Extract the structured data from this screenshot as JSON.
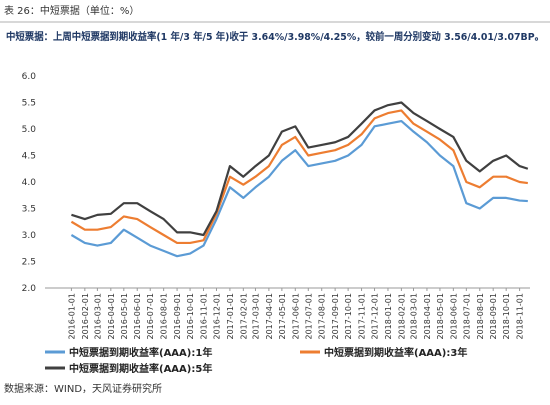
{
  "chart_data": {
    "type": "line",
    "title": "表 26：中短票据（单位：%）",
    "subtitle": "中短票据：上周中短票据到期收益率(1 年/3 年/5 年)收于 3.64%/3.98%/4.25%，较前一周分别变动 3.56/4.01/3.07BP。",
    "source": "数据来源：WIND，天风证券研究所",
    "x": [
      "2016-01-01",
      "2016-02-01",
      "2016-03-01",
      "2016-04-01",
      "2016-05-01",
      "2016-06-01",
      "2016-07-01",
      "2016-08-01",
      "2016-09-01",
      "2016-10-01",
      "2016-11-01",
      "2016-12-01",
      "2017-01-01",
      "2017-02-01",
      "2017-03-01",
      "2017-04-01",
      "2017-05-01",
      "2017-06-01",
      "2017-07-01",
      "2017-08-01",
      "2017-09-01",
      "2017-10-01",
      "2017-11-01",
      "2017-12-01",
      "2018-01-01",
      "2018-02-01",
      "2018-03-01",
      "2018-04-01",
      "2018-05-01",
      "2018-06-01",
      "2018-07-01",
      "2018-08-01",
      "2018-09-01",
      "2018-10-01",
      "2018-11-01",
      "2018-11-20"
    ],
    "series": [
      {
        "name": "中短票据到期收益率(AAA):1年",
        "color": "#5b9bd5",
        "values": [
          3.0,
          2.85,
          2.8,
          2.85,
          3.1,
          2.95,
          2.8,
          2.7,
          2.6,
          2.65,
          2.8,
          3.3,
          3.9,
          3.7,
          3.9,
          4.1,
          4.4,
          4.6,
          4.3,
          4.35,
          4.4,
          4.5,
          4.7,
          5.05,
          5.1,
          5.15,
          4.95,
          4.75,
          4.5,
          4.3,
          3.6,
          3.5,
          3.7,
          3.7,
          3.65,
          3.64
        ]
      },
      {
        "name": "中短票据到期收益率(AAA):3年",
        "color": "#ed7d31",
        "values": [
          3.25,
          3.1,
          3.1,
          3.15,
          3.35,
          3.3,
          3.15,
          3.0,
          2.85,
          2.85,
          2.9,
          3.4,
          4.1,
          3.95,
          4.1,
          4.3,
          4.7,
          4.85,
          4.5,
          4.55,
          4.6,
          4.7,
          4.9,
          5.2,
          5.3,
          5.35,
          5.1,
          4.95,
          4.8,
          4.6,
          4.0,
          3.9,
          4.1,
          4.1,
          4.0,
          3.98
        ]
      },
      {
        "name": "中短票据到期收益率(AAA):5年",
        "color": "#404040",
        "values": [
          3.38,
          3.3,
          3.38,
          3.4,
          3.6,
          3.6,
          3.45,
          3.3,
          3.05,
          3.05,
          3.0,
          3.45,
          4.3,
          4.1,
          4.3,
          4.5,
          4.95,
          5.05,
          4.65,
          4.7,
          4.75,
          4.85,
          5.1,
          5.35,
          5.45,
          5.5,
          5.3,
          5.15,
          5.0,
          4.85,
          4.4,
          4.2,
          4.4,
          4.5,
          4.3,
          4.25
        ]
      }
    ],
    "xlim": [
      "2015-11-01",
      "2018-11-25"
    ],
    "xticks": [
      "2016-01-01",
      "2016-02-01",
      "2016-03-01",
      "2016-04-01",
      "2016-05-01",
      "2016-06-01",
      "2016-07-01",
      "2016-08-01",
      "2016-09-01",
      "2016-10-01",
      "2016-11-01",
      "2016-12-01",
      "2017-01-01",
      "2017-02-01",
      "2017-03-01",
      "2017-04-01",
      "2017-05-01",
      "2017-06-01",
      "2017-07-01",
      "2017-08-01",
      "2017-09-01",
      "2017-10-01",
      "2017-11-01",
      "2017-12-01",
      "2018-01-01",
      "2018-02-01",
      "2018-03-01",
      "2018-04-01",
      "2018-05-01",
      "2018-06-01",
      "2018-07-01",
      "2018-08-01",
      "2018-09-01",
      "2018-10-01",
      "2018-11-01"
    ],
    "ylim": [
      2,
      6
    ],
    "yticks": [
      {
        "value": 2,
        "label": "2.0"
      },
      2.5,
      {
        "value": 3,
        "label": "3.0"
      },
      3.5,
      {
        "value": 4,
        "label": "4.0"
      },
      4.5,
      {
        "value": 5,
        "label": "5.0"
      },
      5.5,
      {
        "value": 6,
        "label": "6.0"
      }
    ],
    "grid": false
  }
}
